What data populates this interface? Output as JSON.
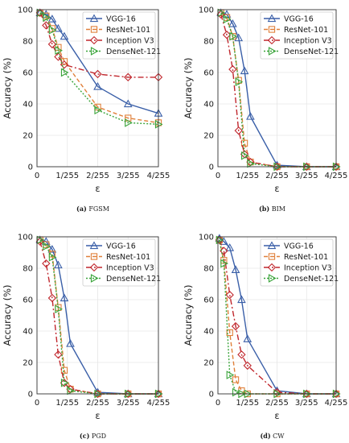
{
  "chart_data": [
    {
      "type": "line",
      "caption_label": "(a)",
      "caption_text": "FGSM",
      "xlabel": "ε",
      "ylabel": "Accuracy (%)",
      "xlim": [
        0,
        4
      ],
      "ylim": [
        0,
        100
      ],
      "xticks": [
        0,
        1,
        2,
        3,
        4
      ],
      "xticklabels": [
        "0",
        "1/255",
        "2/255",
        "3/255",
        "4/255"
      ],
      "yticks": [
        0,
        20,
        40,
        60,
        80,
        100
      ],
      "grid": true,
      "legend_position": "top-right",
      "series": [
        {
          "name": "VGG-16",
          "x": [
            0.1,
            0.3,
            0.5,
            0.7,
            0.9,
            2,
            3,
            4
          ],
          "y": [
            98,
            97,
            94,
            88,
            83,
            51,
            40,
            34
          ]
        },
        {
          "name": "ResNet-101",
          "x": [
            0.1,
            0.3,
            0.5,
            0.7,
            0.9,
            2,
            3,
            4
          ],
          "y": [
            98,
            96,
            88,
            76,
            67,
            38,
            31,
            28
          ]
        },
        {
          "name": "Inception V3",
          "x": [
            0.1,
            0.3,
            0.5,
            0.7,
            0.9,
            2,
            3,
            4
          ],
          "y": [
            98,
            90,
            78,
            70,
            65,
            59,
            57,
            57
          ]
        },
        {
          "name": "DenseNet-121",
          "x": [
            0.1,
            0.3,
            0.5,
            0.7,
            0.9,
            2,
            3,
            4
          ],
          "y": [
            98,
            95,
            87,
            74,
            60,
            36,
            28,
            27
          ]
        }
      ]
    },
    {
      "type": "line",
      "caption_label": "(b)",
      "caption_text": "BIM",
      "xlabel": "ε",
      "ylabel": "Accuracy (%)",
      "xlim": [
        0,
        4
      ],
      "ylim": [
        0,
        100
      ],
      "xticks": [
        0,
        1,
        2,
        3,
        4
      ],
      "xticklabels": [
        "0",
        "1/255",
        "2/255",
        "3/255",
        "4/255"
      ],
      "yticks": [
        0,
        20,
        40,
        60,
        80,
        100
      ],
      "grid": true,
      "legend_position": "top-right",
      "series": [
        {
          "name": "VGG-16",
          "x": [
            0.1,
            0.3,
            0.5,
            0.7,
            0.9,
            1.1,
            2,
            3,
            4
          ],
          "y": [
            98,
            97,
            91,
            82,
            61,
            32,
            1,
            0,
            0
          ]
        },
        {
          "name": "ResNet-101",
          "x": [
            0.1,
            0.3,
            0.5,
            0.7,
            0.9,
            1.1,
            2,
            3,
            4
          ],
          "y": [
            98,
            95,
            83,
            55,
            15,
            3,
            0,
            0,
            0
          ]
        },
        {
          "name": "Inception V3",
          "x": [
            0.1,
            0.3,
            0.5,
            0.7,
            0.9,
            1.1,
            2,
            3,
            4
          ],
          "y": [
            97,
            84,
            62,
            23,
            8,
            3,
            0,
            0,
            0
          ]
        },
        {
          "name": "DenseNet-121",
          "x": [
            0.1,
            0.3,
            0.5,
            0.7,
            0.9,
            1.1,
            2,
            3,
            4
          ],
          "y": [
            98,
            94,
            83,
            54,
            7,
            2,
            0,
            0,
            0
          ]
        }
      ]
    },
    {
      "type": "line",
      "caption_label": "(c)",
      "caption_text": "PGD",
      "xlabel": "ε",
      "ylabel": "Accuracy (%)",
      "xlim": [
        0,
        4
      ],
      "ylim": [
        0,
        100
      ],
      "xticks": [
        0,
        1,
        2,
        3,
        4
      ],
      "xticklabels": [
        "0",
        "1/255",
        "2/255",
        "3/255",
        "4/255"
      ],
      "yticks": [
        0,
        20,
        40,
        60,
        80,
        100
      ],
      "grid": true,
      "legend_position": "top-right",
      "series": [
        {
          "name": "VGG-16",
          "x": [
            0.1,
            0.3,
            0.5,
            0.7,
            0.9,
            1.1,
            2,
            3,
            4
          ],
          "y": [
            98,
            97,
            92,
            82,
            61,
            32,
            1,
            0,
            0
          ]
        },
        {
          "name": "ResNet-101",
          "x": [
            0.1,
            0.3,
            0.5,
            0.7,
            0.9,
            1.1,
            2,
            3,
            4
          ],
          "y": [
            98,
            95,
            89,
            55,
            15,
            3,
            0,
            0,
            0
          ]
        },
        {
          "name": "Inception V3",
          "x": [
            0.1,
            0.3,
            0.5,
            0.7,
            0.9,
            1.1,
            2,
            3,
            4
          ],
          "y": [
            97,
            83,
            61,
            25,
            7,
            3,
            0,
            0,
            0
          ]
        },
        {
          "name": "DenseNet-121",
          "x": [
            0.1,
            0.3,
            0.5,
            0.7,
            0.9,
            1.1,
            2,
            3,
            4
          ],
          "y": [
            98,
            94,
            87,
            54,
            7,
            2,
            0,
            0,
            0
          ]
        }
      ]
    },
    {
      "type": "line",
      "caption_label": "(d)",
      "caption_text": "CW",
      "xlabel": "ε",
      "ylabel": "Accuracy (%)",
      "xlim": [
        0,
        4
      ],
      "ylim": [
        0,
        100
      ],
      "xticks": [
        0,
        1,
        2,
        3,
        4
      ],
      "xticklabels": [
        "0",
        "1/255",
        "2/255",
        "3/255",
        "4/255"
      ],
      "yticks": [
        0,
        20,
        40,
        60,
        80,
        100
      ],
      "grid": true,
      "legend_position": "top-right",
      "series": [
        {
          "name": "VGG-16",
          "x": [
            0.05,
            0.2,
            0.4,
            0.6,
            0.8,
            1.0,
            2,
            3,
            4
          ],
          "y": [
            99,
            97,
            93,
            79,
            60,
            35,
            2,
            0,
            0
          ]
        },
        {
          "name": "ResNet-101",
          "x": [
            0.05,
            0.2,
            0.4,
            0.6,
            0.8,
            1.0,
            2,
            3,
            4
          ],
          "y": [
            98,
            85,
            39,
            9,
            2,
            0,
            0,
            0,
            0
          ]
        },
        {
          "name": "Inception V3",
          "x": [
            0.05,
            0.2,
            0.4,
            0.6,
            0.8,
            1.0,
            2,
            3,
            4
          ],
          "y": [
            98,
            91,
            63,
            43,
            25,
            18,
            1,
            0,
            0
          ]
        },
        {
          "name": "DenseNet-121",
          "x": [
            0.05,
            0.2,
            0.4,
            0.6,
            0.8,
            1.0,
            2,
            3,
            4
          ],
          "y": [
            98,
            83,
            12,
            1,
            0,
            0,
            0,
            0,
            0
          ]
        }
      ]
    }
  ],
  "series_style": [
    {
      "color": "#3a5fa8",
      "dash": "",
      "marker": "triangle-up"
    },
    {
      "color": "#e0803a",
      "dash": "5,3",
      "marker": "square"
    },
    {
      "color": "#c0272d",
      "dash": "7,3,2,3",
      "marker": "diamond"
    },
    {
      "color": "#3aa43a",
      "dash": "2,2",
      "marker": "triangle-right"
    }
  ]
}
